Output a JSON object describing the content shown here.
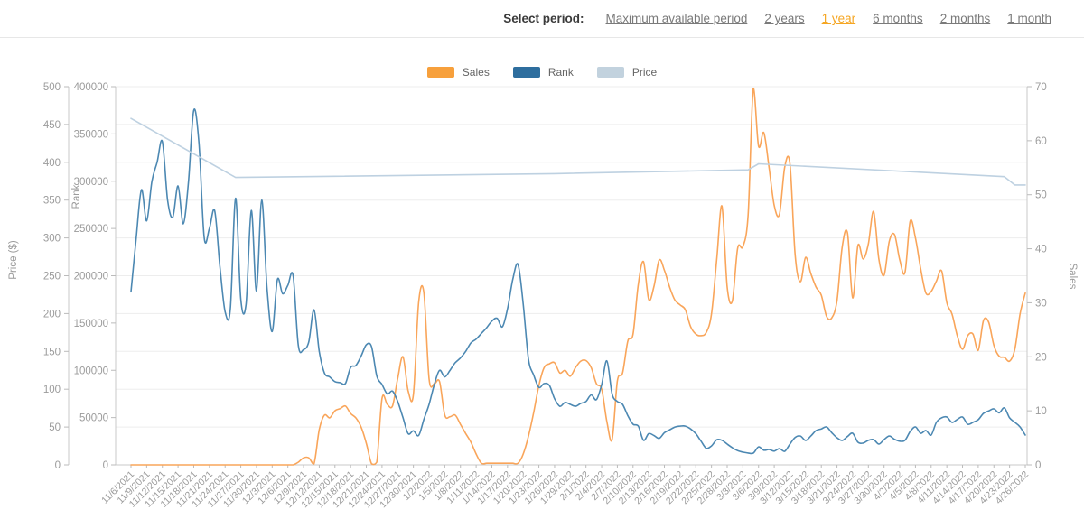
{
  "period_selector": {
    "label": "Select period:",
    "active_color": "#f5a623",
    "options": [
      {
        "label": "Maximum available period",
        "active": false
      },
      {
        "label": "2 years",
        "active": false
      },
      {
        "label": "1 year",
        "active": true
      },
      {
        "label": "6 months",
        "active": false
      },
      {
        "label": "2 months",
        "active": false
      },
      {
        "label": "1 month",
        "active": false
      }
    ]
  },
  "legend": [
    {
      "label": "Sales",
      "color": "#f7a03c"
    },
    {
      "label": "Rank",
      "color": "#2e6e9e"
    },
    {
      "label": "Price",
      "color": "#c2d2de"
    }
  ],
  "chart_data": {
    "type": "line",
    "title": "",
    "start_date": "11/6/2021",
    "end_date": "4/26/2022",
    "data_interval": "1 day",
    "x_tick_interval_days": 3,
    "x_tick_labels": [
      "11/6/2021",
      "11/9/2021",
      "11/12/2021",
      "11/15/2021",
      "11/18/2021",
      "11/21/2021",
      "11/24/2021",
      "11/27/2021",
      "11/30/2021",
      "12/3/2021",
      "12/6/2021",
      "12/9/2021",
      "12/12/2021",
      "12/15/2021",
      "12/18/2021",
      "12/21/2021",
      "12/24/2021",
      "12/27/2021",
      "12/30/2021",
      "1/2/2022",
      "1/5/2022",
      "1/8/2022",
      "1/11/2022",
      "1/14/2022",
      "1/17/2022",
      "1/20/2022",
      "1/23/2022",
      "1/26/2022",
      "1/29/2022",
      "2/1/2022",
      "2/4/2022",
      "2/7/2022",
      "2/10/2022",
      "2/13/2022",
      "2/16/2022",
      "2/19/2022",
      "2/22/2022",
      "2/25/2022",
      "2/28/2022",
      "3/3/2022",
      "3/6/2022",
      "3/9/2022",
      "3/12/2022",
      "3/15/2022",
      "3/18/2022",
      "3/21/2022",
      "3/24/2022",
      "3/27/2022",
      "3/30/2022",
      "4/2/2022",
      "4/5/2022",
      "4/8/2022",
      "4/11/2022",
      "4/14/2022",
      "4/17/2022",
      "4/20/2022",
      "4/23/2022",
      "4/26/2022"
    ],
    "axes": {
      "price": {
        "title": "Price ($)",
        "min": 0,
        "max": 500,
        "tick": 50,
        "side": "left-outer"
      },
      "rank": {
        "title": "Rank",
        "min": 0,
        "max": 400000,
        "tick": 50000,
        "side": "left-inner"
      },
      "sales": {
        "title": "Sales",
        "min": 0,
        "max": 70,
        "tick": 10,
        "side": "right"
      }
    },
    "grid": "horizontal",
    "legend_position": "top-center",
    "series": [
      {
        "name": "Sales",
        "axis": "sales",
        "color": "#f9a55a",
        "smooth": true,
        "daily_values": [
          0,
          0,
          0,
          0,
          0,
          0,
          0,
          0,
          0,
          0,
          0,
          0,
          0,
          0,
          0,
          0,
          0,
          0,
          0,
          0,
          0,
          0,
          0,
          0,
          0,
          0,
          0,
          0,
          0,
          0,
          0,
          0,
          0.5,
          1.3,
          1.3,
          0.2,
          6.5,
          9.2,
          8.7,
          10,
          10.4,
          10.9,
          9.5,
          8.7,
          7,
          4,
          0.2,
          0.5,
          12.3,
          11.2,
          10.9,
          16,
          20,
          13.7,
          13,
          30,
          31.9,
          15.9,
          15,
          15.4,
          9.2,
          8.9,
          9.2,
          7.5,
          5.8,
          4.2,
          2,
          0.3,
          0.3,
          0.3,
          0.3,
          0.3,
          0.3,
          0.3,
          0.3,
          2,
          5.3,
          9.7,
          14.7,
          18,
          18.7,
          18.9,
          17,
          17.5,
          16.4,
          18,
          19.2,
          19.3,
          18,
          15,
          14,
          8,
          4.7,
          15.5,
          17,
          22.9,
          24.2,
          33.4,
          37.6,
          30.6,
          33,
          37.9,
          36,
          32.9,
          30.5,
          29.6,
          28.7,
          25.6,
          24.2,
          23.9,
          24.5,
          27.9,
          38,
          47.9,
          32.9,
          30.4,
          40.1,
          40.4,
          46.3,
          69.7,
          59,
          61.5,
          55.1,
          48,
          46.4,
          55.1,
          55.7,
          38.8,
          33.9,
          38.4,
          35.4,
          32.9,
          31.4,
          27.5,
          27.2,
          30.4,
          40.4,
          42.9,
          30.9,
          40.6,
          38.1,
          40.9,
          46.9,
          38.1,
          35.1,
          41.4,
          42.6,
          37.9,
          35.6,
          45.1,
          42,
          36.3,
          31.8,
          32.1,
          34,
          35.9,
          30,
          27.9,
          23.9,
          21.4,
          23.9,
          24.2,
          21.2,
          26.7,
          26.4,
          22.1,
          20.1,
          19.9,
          19.2,
          21.4,
          27.9,
          31.8
        ]
      },
      {
        "name": "Rank",
        "axis": "rank",
        "color": "#4c88b2",
        "smooth": true,
        "daily_values": [
          183000,
          240000,
          291000,
          258000,
          300000,
          320000,
          342000,
          280000,
          262000,
          295000,
          255000,
          300000,
          375000,
          340000,
          240000,
          250000,
          269000,
          210000,
          162000,
          165000,
          282000,
          175000,
          170000,
          269000,
          184000,
          280000,
          188000,
          141000,
          196000,
          181000,
          190000,
          200000,
          126000,
          122000,
          130000,
          164000,
          120000,
          97000,
          93000,
          88000,
          87000,
          86000,
          103000,
          105000,
          115000,
          127000,
          125000,
          94000,
          85000,
          75000,
          78000,
          67000,
          50000,
          33000,
          36000,
          31000,
          48000,
          64000,
          85000,
          100000,
          93000,
          100000,
          108000,
          113000,
          120000,
          129000,
          133000,
          139000,
          145000,
          152000,
          155000,
          146000,
          165000,
          196000,
          212000,
          170000,
          112000,
          95000,
          82000,
          86000,
          84000,
          70000,
          62000,
          66000,
          64000,
          62000,
          65000,
          67000,
          74000,
          69000,
          85000,
          110000,
          75000,
          67000,
          64000,
          52000,
          43000,
          41000,
          26000,
          33000,
          31000,
          28000,
          34000,
          37000,
          40000,
          41000,
          41000,
          38000,
          33000,
          25000,
          17500,
          20000,
          26500,
          26000,
          22000,
          18000,
          15000,
          13500,
          12500,
          12400,
          19000,
          15500,
          16200,
          14500,
          17200,
          14300,
          22000,
          29000,
          30500,
          25800,
          30500,
          36300,
          38000,
          40100,
          34000,
          28600,
          25800,
          30000,
          33400,
          24000,
          23000,
          26000,
          26700,
          22000,
          26700,
          30500,
          27000,
          25000,
          26000,
          35300,
          40100,
          33400,
          36300,
          31500,
          44900,
          49700,
          50600,
          44900,
          48000,
          50600,
          43000,
          45000,
          47700,
          54400,
          57000,
          59200,
          55000,
          60200,
          49700,
          45000,
          40100,
          31500
        ]
      },
      {
        "name": "Price",
        "axis": "price",
        "color": "#bed1e1",
        "smooth": false,
        "points_day_value": [
          [
            0,
            458
          ],
          [
            20,
            380
          ],
          [
            81,
            385
          ],
          [
            118,
            390
          ],
          [
            120,
            398
          ],
          [
            167,
            381
          ],
          [
            169,
            370
          ],
          [
            171,
            370
          ]
        ]
      }
    ]
  }
}
